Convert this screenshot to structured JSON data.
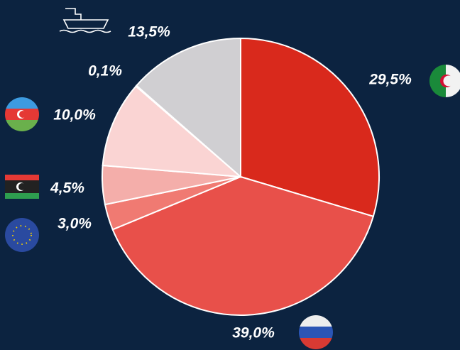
{
  "chart_data": {
    "type": "pie",
    "values": [
      29.5,
      39.0,
      3.0,
      4.5,
      10.0,
      0.1,
      13.5
    ],
    "value_labels": [
      "29,5%",
      "39,0%",
      "3,0%",
      "4,5%",
      "10,0%",
      "0,1%",
      "13,5%"
    ],
    "colors": [
      "#d9291c",
      "#e8504a",
      "#f07a72",
      "#f4aeaa",
      "#fad4d3",
      "#fdeeee",
      "#d0cfd2"
    ]
  }
}
